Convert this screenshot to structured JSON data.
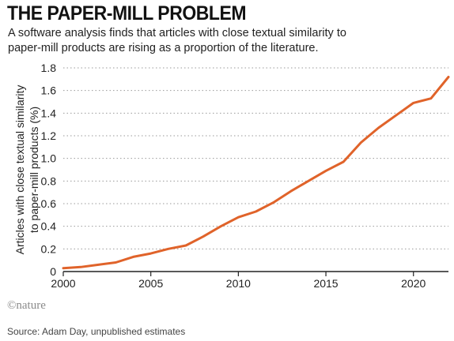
{
  "title": "THE PAPER-MILL PROBLEM",
  "subtitle": "A software analysis finds that articles with close textual similarity to paper-mill products are rising as a proportion of the literature.",
  "credit": "©nature",
  "source": "Source: Adam Day, unpublished estimates",
  "colors": {
    "line": "#e0632a",
    "grid": "#9a9a9a",
    "axis": "#222222"
  },
  "chart_data": {
    "type": "line",
    "title": "THE PAPER-MILL PROBLEM",
    "ylabel_lines": [
      "Articles with close textual similarity",
      "to paper-mill products (%)"
    ],
    "xlabel": "",
    "xlim": [
      2000,
      2022
    ],
    "ylim": [
      0,
      1.8
    ],
    "x_ticks": [
      2000,
      2005,
      2010,
      2015,
      2020
    ],
    "x_tick_labels": [
      "2000",
      "2005",
      "2010",
      "2015",
      "2020"
    ],
    "y_ticks": [
      0,
      0.2,
      0.4,
      0.6,
      0.8,
      1.0,
      1.2,
      1.4,
      1.6,
      1.8
    ],
    "y_tick_labels": [
      "0",
      "0.2",
      "0.4",
      "0.6",
      "0.8",
      "1.0",
      "1.2",
      "1.4",
      "1.6",
      "1.8"
    ],
    "grid": "horizontal dotted",
    "series": [
      {
        "x": [
          2000,
          2001,
          2002,
          2003,
          2004,
          2005,
          2006,
          2007,
          2008,
          2009,
          2010,
          2011,
          2012,
          2013,
          2014,
          2015,
          2016,
          2017,
          2018,
          2019,
          2020,
          2021,
          2022
        ],
        "values": [
          0.03,
          0.04,
          0.06,
          0.08,
          0.13,
          0.16,
          0.2,
          0.23,
          0.31,
          0.4,
          0.48,
          0.53,
          0.61,
          0.71,
          0.8,
          0.89,
          0.97,
          1.14,
          1.27,
          1.38,
          1.49,
          1.53,
          1.72
        ]
      }
    ]
  }
}
